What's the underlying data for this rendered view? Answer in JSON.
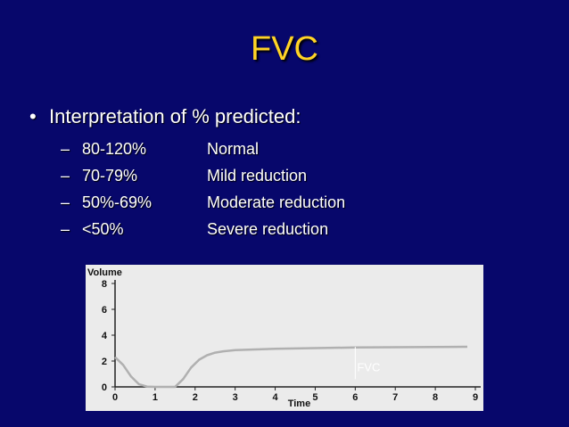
{
  "slide": {
    "title": "FVC",
    "bullet": "Interpretation of % predicted:",
    "items": [
      {
        "range": "80-120%",
        "label": "Normal"
      },
      {
        "range": "70-79%",
        "label": "Mild reduction"
      },
      {
        "range": "50%-69%",
        "label": "Moderate reduction"
      },
      {
        "range": "<50%",
        "label": "Severe reduction"
      }
    ]
  },
  "chart_data": {
    "type": "line",
    "xlabel": "Time",
    "ylabel": "Volume",
    "xlim": [
      0,
      9
    ],
    "ylim": [
      0,
      8
    ],
    "x_ticks": [
      "0",
      "1",
      "2",
      "3",
      "4",
      "5",
      "6",
      "7",
      "8",
      "9"
    ],
    "y_ticks": [
      "0",
      "2",
      "4",
      "6",
      "8"
    ],
    "annotation": "FVC",
    "series": [
      {
        "x": [
          0,
          0.2,
          0.4,
          0.6,
          0.8,
          1.0,
          1.2,
          1.5,
          1.7,
          1.9,
          2.1,
          2.3,
          2.5,
          2.7,
          3.0,
          4.0,
          5.0,
          6.0,
          7.0,
          8.0,
          8.8
        ],
        "y": [
          2.3,
          1.7,
          0.8,
          0.2,
          0.02,
          0,
          0,
          0,
          0.6,
          1.5,
          2.1,
          2.45,
          2.65,
          2.75,
          2.85,
          2.95,
          3.0,
          3.05,
          3.07,
          3.09,
          3.1
        ],
        "color": "#b0b0b0"
      }
    ]
  }
}
